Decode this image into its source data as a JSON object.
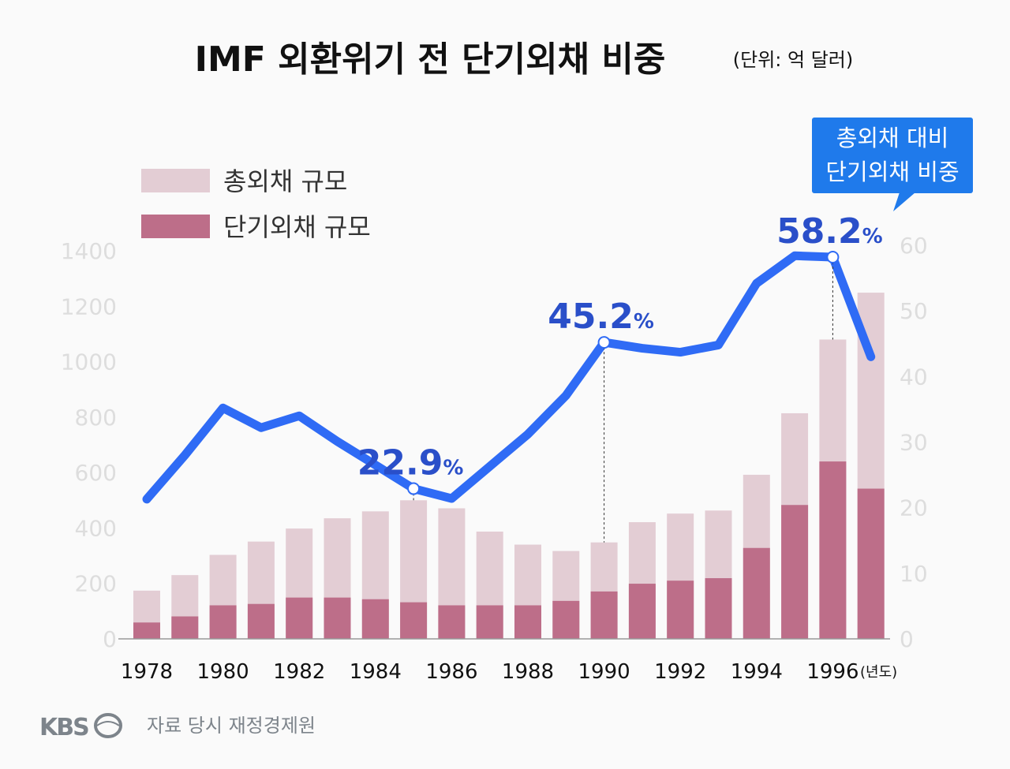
{
  "chart_data": {
    "type": "bar+line",
    "title": "IMF 외환위기 전 단기외채 비중",
    "unit": "(단위: 억 달러)",
    "x_unit": "(년도)",
    "categories": [
      1978,
      1979,
      1980,
      1981,
      1982,
      1983,
      1984,
      1985,
      1986,
      1987,
      1988,
      1989,
      1990,
      1991,
      1992,
      1993,
      1994,
      1995,
      1996,
      1997
    ],
    "x_tick_labels": [
      "1978",
      "1980",
      "1982",
      "1984",
      "1986",
      "1988",
      "1990",
      "1992",
      "1994",
      "1996"
    ],
    "left_axis": {
      "range": [
        0,
        1400
      ],
      "ticks": [
        "0",
        "200",
        "400",
        "600",
        "800",
        "1000",
        "1200",
        "1400"
      ]
    },
    "right_axis": {
      "range": [
        0,
        60
      ],
      "ticks": [
        "0",
        "10",
        "20",
        "30",
        "40",
        "50",
        "60"
      ]
    },
    "series": [
      {
        "name": "총외채 규모",
        "type": "bar",
        "axis": "left",
        "color": "#e3cdd4",
        "values": [
          174,
          230,
          303,
          351,
          398,
          435,
          460,
          500,
          471,
          387,
          340,
          317,
          348,
          421,
          452,
          463,
          592,
          814,
          1080,
          1249
        ]
      },
      {
        "name": "단기외채 규모",
        "type": "bar",
        "axis": "left",
        "color": "#bd6e89",
        "values": [
          59,
          81,
          121,
          126,
          149,
          149,
          143,
          132,
          121,
          121,
          121,
          137,
          171,
          199,
          210,
          219,
          328,
          483,
          640,
          542
        ]
      },
      {
        "name": "총외채 대비 단기외채 비중",
        "type": "line",
        "axis": "right",
        "color": "#2f6bf5",
        "values": [
          21.3,
          28,
          35.2,
          32.2,
          34,
          30.1,
          26.5,
          22.9,
          21.4,
          26.3,
          31.2,
          37.1,
          45.2,
          44.3,
          43.7,
          44.8,
          54.2,
          58.4,
          58.2,
          43
        ]
      }
    ],
    "annotations": [
      {
        "year": 1985,
        "value": "22.9",
        "suffix": "%"
      },
      {
        "year": 1990,
        "value": "45.2",
        "suffix": "%"
      },
      {
        "year": 1996,
        "value": "58.2",
        "suffix": "%"
      }
    ],
    "callout": [
      "총외채 대비",
      "단기외채 비중"
    ],
    "legend_placement": "top-left",
    "grid": false
  },
  "footer": {
    "logo": "KBS",
    "source": "자료 당시 재정경제원"
  }
}
